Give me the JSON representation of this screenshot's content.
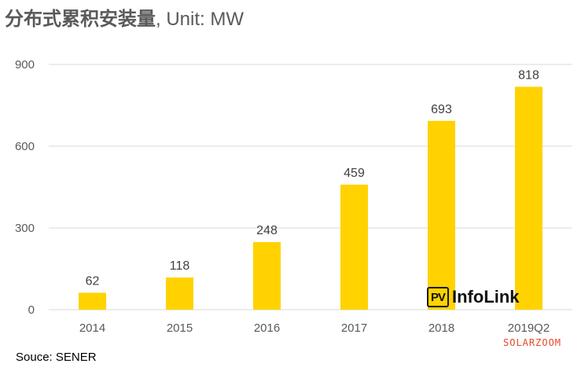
{
  "title": {
    "main": "分布式累积安装量",
    "unit": ", Unit: MW"
  },
  "source": "Souce: SENER",
  "watermark": {
    "logo_mark": "PV",
    "logo_text": "InfoLink",
    "publisher": "SOLARZOOM"
  },
  "chart_data": {
    "type": "bar",
    "categories": [
      "2014",
      "2015",
      "2016",
      "2017",
      "2018",
      "2019Q2"
    ],
    "values": [
      62,
      118,
      248,
      459,
      693,
      818
    ],
    "ylim": [
      0,
      900
    ],
    "yticks": [
      0,
      300,
      600,
      900
    ],
    "data_labels": true,
    "grid": true,
    "bar_color": "#FFD200",
    "grid_color": "#D9D9D9"
  }
}
